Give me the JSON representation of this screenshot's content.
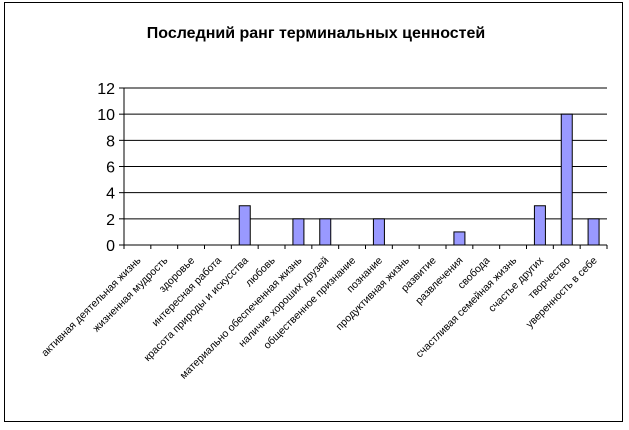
{
  "chart_data": {
    "type": "bar",
    "title": "Последний ранг терминальных ценностей",
    "xlabel": "",
    "ylabel": "",
    "ylim": [
      0,
      12
    ],
    "yticks": [
      0,
      2,
      4,
      6,
      8,
      10,
      12
    ],
    "grid": true,
    "legend": "none",
    "bar_color": "#9999ff",
    "categories": [
      "активная деятельная жизнь",
      "жизненная мудрость",
      "здоровье",
      "интересная работа",
      "красота природы и искусства",
      "любовь",
      "материально обеспеченная жизнь",
      "наличие хороших друзей",
      "общественное признание",
      "познание",
      "продуктивная жизнь",
      "развитие",
      "развлечения",
      "свобода",
      "счастливая семейная жизнь",
      "счастье других",
      "творчество",
      "уверенность в себе"
    ],
    "values": [
      0,
      0,
      0,
      0,
      3,
      0,
      2,
      2,
      0,
      2,
      0,
      0,
      1,
      0,
      0,
      3,
      10,
      2
    ]
  }
}
